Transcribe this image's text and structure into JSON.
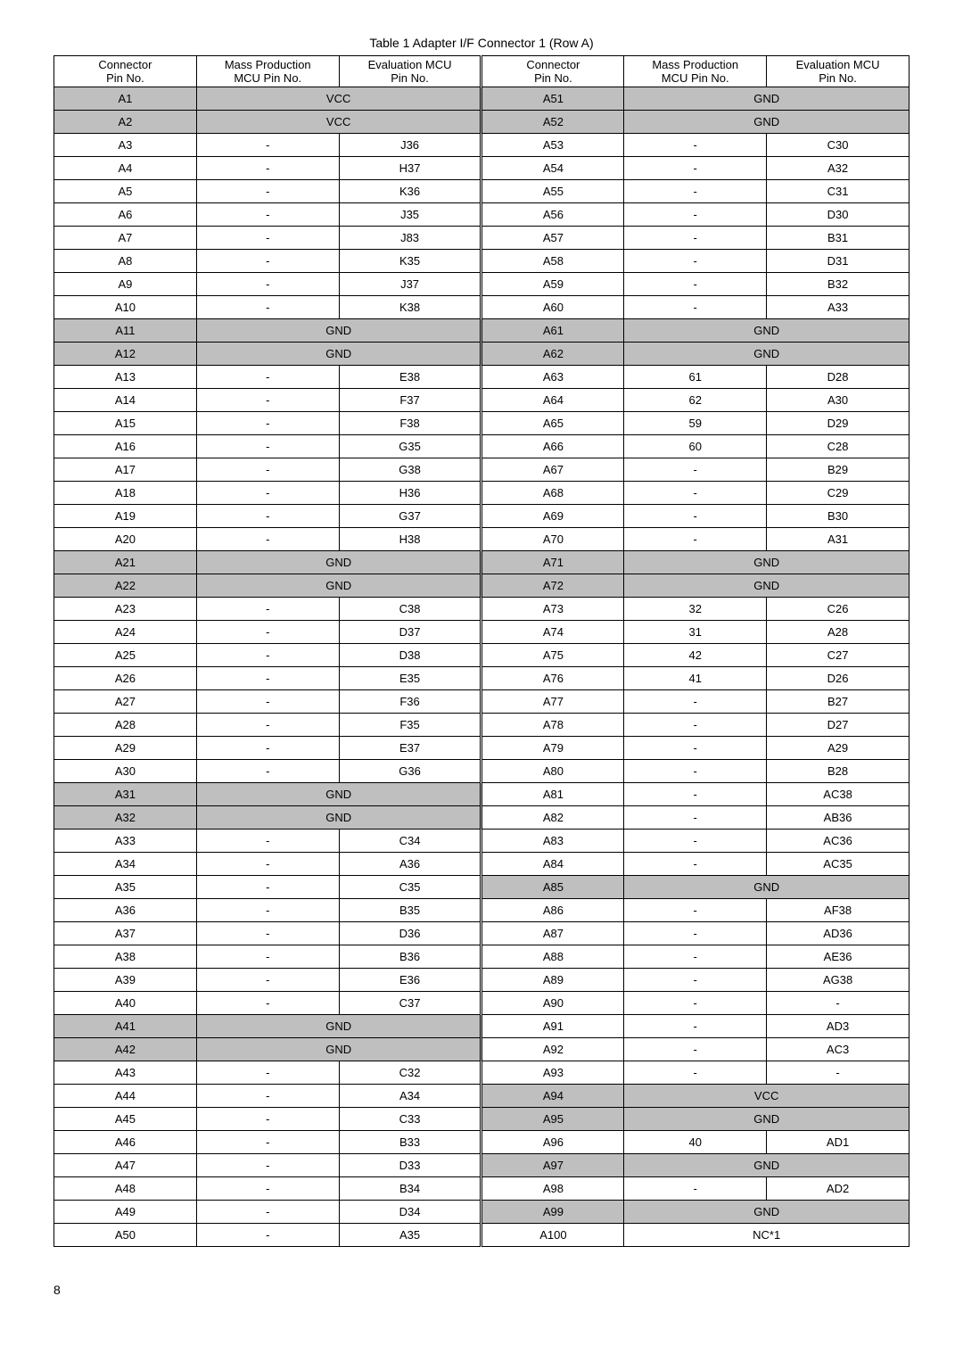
{
  "caption": "Table 1 Adapter I/F Connector 1 (Row A)",
  "header": {
    "c1": "Connector\nPin No.",
    "c2": "Mass Production\nMCU Pin No.",
    "c3": "Evaluation MCU\nPin No.",
    "c4": "Connector\nPin No.",
    "c5": "Mass Production\nMCU Pin No.",
    "c6": "Evaluation MCU\nPin No."
  },
  "rows": [
    {
      "l": [
        "A1",
        "VCC",
        ""
      ],
      "ls": true,
      "lm": true,
      "r": [
        "A51",
        "GND",
        ""
      ],
      "rs": true,
      "rm": true
    },
    {
      "l": [
        "A2",
        "VCC",
        ""
      ],
      "ls": true,
      "lm": true,
      "r": [
        "A52",
        "GND",
        ""
      ],
      "rs": true,
      "rm": true
    },
    {
      "l": [
        "A3",
        "-",
        "J36"
      ],
      "r": [
        "A53",
        "-",
        "C30"
      ]
    },
    {
      "l": [
        "A4",
        "-",
        "H37"
      ],
      "r": [
        "A54",
        "-",
        "A32"
      ]
    },
    {
      "l": [
        "A5",
        "-",
        "K36"
      ],
      "r": [
        "A55",
        "-",
        "C31"
      ]
    },
    {
      "l": [
        "A6",
        "-",
        "J35"
      ],
      "r": [
        "A56",
        "-",
        "D30"
      ]
    },
    {
      "l": [
        "A7",
        "-",
        "J83"
      ],
      "r": [
        "A57",
        "-",
        "B31"
      ]
    },
    {
      "l": [
        "A8",
        "-",
        "K35"
      ],
      "r": [
        "A58",
        "-",
        "D31"
      ]
    },
    {
      "l": [
        "A9",
        "-",
        "J37"
      ],
      "r": [
        "A59",
        "-",
        "B32"
      ]
    },
    {
      "l": [
        "A10",
        "-",
        "K38"
      ],
      "r": [
        "A60",
        "-",
        "A33"
      ]
    },
    {
      "l": [
        "A11",
        "GND",
        ""
      ],
      "ls": true,
      "lm": true,
      "r": [
        "A61",
        "GND",
        ""
      ],
      "rs": true,
      "rm": true
    },
    {
      "l": [
        "A12",
        "GND",
        ""
      ],
      "ls": true,
      "lm": true,
      "r": [
        "A62",
        "GND",
        ""
      ],
      "rs": true,
      "rm": true
    },
    {
      "l": [
        "A13",
        "-",
        "E38"
      ],
      "r": [
        "A63",
        "61",
        "D28"
      ]
    },
    {
      "l": [
        "A14",
        "-",
        "F37"
      ],
      "r": [
        "A64",
        "62",
        "A30"
      ]
    },
    {
      "l": [
        "A15",
        "-",
        "F38"
      ],
      "r": [
        "A65",
        "59",
        "D29"
      ]
    },
    {
      "l": [
        "A16",
        "-",
        "G35"
      ],
      "r": [
        "A66",
        "60",
        "C28"
      ]
    },
    {
      "l": [
        "A17",
        "-",
        "G38"
      ],
      "r": [
        "A67",
        "-",
        "B29"
      ]
    },
    {
      "l": [
        "A18",
        "-",
        "H36"
      ],
      "r": [
        "A68",
        "-",
        "C29"
      ]
    },
    {
      "l": [
        "A19",
        "-",
        "G37"
      ],
      "r": [
        "A69",
        "-",
        "B30"
      ]
    },
    {
      "l": [
        "A20",
        "-",
        "H38"
      ],
      "r": [
        "A70",
        "-",
        "A31"
      ]
    },
    {
      "l": [
        "A21",
        "GND",
        ""
      ],
      "ls": true,
      "lm": true,
      "r": [
        "A71",
        "GND",
        ""
      ],
      "rs": true,
      "rm": true
    },
    {
      "l": [
        "A22",
        "GND",
        ""
      ],
      "ls": true,
      "lm": true,
      "r": [
        "A72",
        "GND",
        ""
      ],
      "rs": true,
      "rm": true
    },
    {
      "l": [
        "A23",
        "-",
        "C38"
      ],
      "r": [
        "A73",
        "32",
        "C26"
      ]
    },
    {
      "l": [
        "A24",
        "-",
        "D37"
      ],
      "r": [
        "A74",
        "31",
        "A28"
      ]
    },
    {
      "l": [
        "A25",
        "-",
        "D38"
      ],
      "r": [
        "A75",
        "42",
        "C27"
      ]
    },
    {
      "l": [
        "A26",
        "-",
        "E35"
      ],
      "r": [
        "A76",
        "41",
        "D26"
      ]
    },
    {
      "l": [
        "A27",
        "-",
        "F36"
      ],
      "r": [
        "A77",
        "-",
        "B27"
      ]
    },
    {
      "l": [
        "A28",
        "-",
        "F35"
      ],
      "r": [
        "A78",
        "-",
        "D27"
      ]
    },
    {
      "l": [
        "A29",
        "-",
        "E37"
      ],
      "r": [
        "A79",
        "-",
        "A29"
      ]
    },
    {
      "l": [
        "A30",
        "-",
        "G36"
      ],
      "r": [
        "A80",
        "-",
        "B28"
      ]
    },
    {
      "l": [
        "A31",
        "GND",
        ""
      ],
      "ls": true,
      "lm": true,
      "r": [
        "A81",
        "-",
        "AC38"
      ]
    },
    {
      "l": [
        "A32",
        "GND",
        ""
      ],
      "ls": true,
      "lm": true,
      "r": [
        "A82",
        "-",
        "AB36"
      ]
    },
    {
      "l": [
        "A33",
        "-",
        "C34"
      ],
      "r": [
        "A83",
        "-",
        "AC36"
      ]
    },
    {
      "l": [
        "A34",
        "-",
        "A36"
      ],
      "r": [
        "A84",
        "-",
        "AC35"
      ]
    },
    {
      "l": [
        "A35",
        "-",
        "C35"
      ],
      "r": [
        "A85",
        "GND",
        ""
      ],
      "rs": true,
      "rm": true
    },
    {
      "l": [
        "A36",
        "-",
        "B35"
      ],
      "r": [
        "A86",
        "-",
        "AF38"
      ]
    },
    {
      "l": [
        "A37",
        "-",
        "D36"
      ],
      "r": [
        "A87",
        "-",
        "AD36"
      ]
    },
    {
      "l": [
        "A38",
        "-",
        "B36"
      ],
      "r": [
        "A88",
        "-",
        "AE36"
      ]
    },
    {
      "l": [
        "A39",
        "-",
        "E36"
      ],
      "r": [
        "A89",
        "-",
        "AG38"
      ]
    },
    {
      "l": [
        "A40",
        "-",
        "C37"
      ],
      "r": [
        "A90",
        "-",
        "-"
      ]
    },
    {
      "l": [
        "A41",
        "GND",
        ""
      ],
      "ls": true,
      "lm": true,
      "r": [
        "A91",
        "-",
        "AD3"
      ]
    },
    {
      "l": [
        "A42",
        "GND",
        ""
      ],
      "ls": true,
      "lm": true,
      "r": [
        "A92",
        "-",
        "AC3"
      ]
    },
    {
      "l": [
        "A43",
        "-",
        "C32"
      ],
      "r": [
        "A93",
        "-",
        "-"
      ]
    },
    {
      "l": [
        "A44",
        "-",
        "A34"
      ],
      "r": [
        "A94",
        "VCC",
        ""
      ],
      "rs": true,
      "rm": true
    },
    {
      "l": [
        "A45",
        "-",
        "C33"
      ],
      "r": [
        "A95",
        "GND",
        ""
      ],
      "rs": true,
      "rm": true
    },
    {
      "l": [
        "A46",
        "-",
        "B33"
      ],
      "r": [
        "A96",
        "40",
        "AD1"
      ]
    },
    {
      "l": [
        "A47",
        "-",
        "D33"
      ],
      "r": [
        "A97",
        "GND",
        ""
      ],
      "rs": true,
      "rm": true
    },
    {
      "l": [
        "A48",
        "-",
        "B34"
      ],
      "r": [
        "A98",
        "-",
        "AD2"
      ]
    },
    {
      "l": [
        "A49",
        "-",
        "D34"
      ],
      "r": [
        "A99",
        "GND",
        ""
      ],
      "rs": true,
      "rm": true
    },
    {
      "l": [
        "A50",
        "-",
        "A35"
      ],
      "r": [
        "A100",
        "NC*1",
        ""
      ],
      "rm": true
    }
  ],
  "pageNumber": "8",
  "styles": {
    "shadedColor": "#bfbfbf",
    "borderColor": "#000000",
    "fontSize": 13,
    "captionFontSize": 14
  }
}
